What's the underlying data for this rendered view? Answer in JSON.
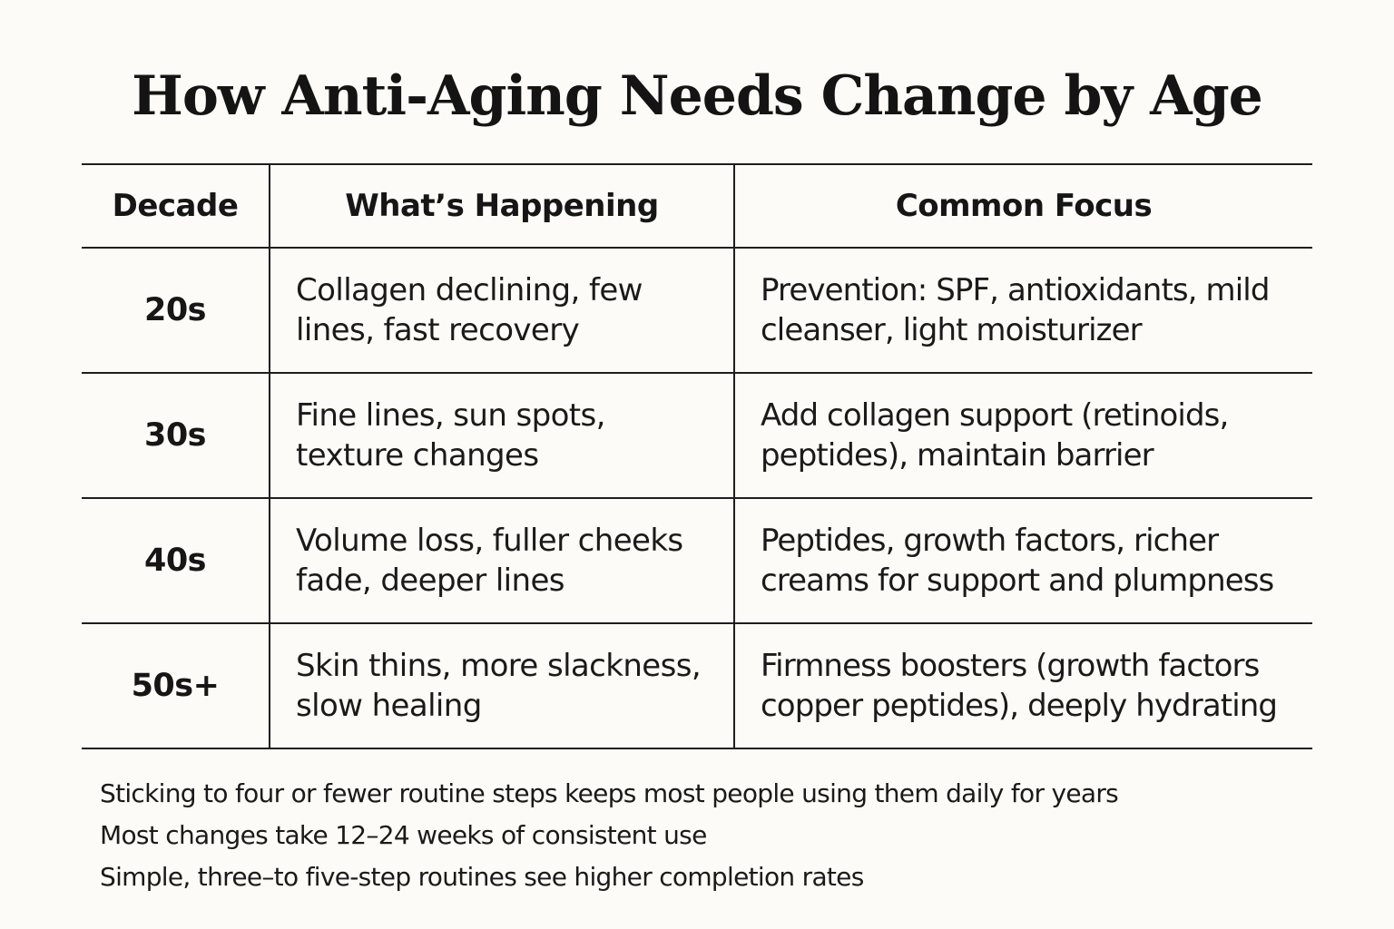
{
  "title": "How Anti-Aging Needs Change by Age",
  "table": {
    "headers": [
      "Decade",
      "What’s Happening",
      "Common Focus"
    ],
    "rows": [
      {
        "decade": "20s",
        "happening": "Collagen declining, few lines, fast recovery",
        "focus": "Prevention: SPF, antioxidants, mild cleanser, light moisturizer"
      },
      {
        "decade": "30s",
        "happening": "Fine lines, sun spots, texture changes",
        "focus": "Add collagen support (retinoids, peptides), maintain barrier"
      },
      {
        "decade": "40s",
        "happening": "Volume loss, fuller cheeks fade, deeper lines",
        "focus": "Peptides, growth factors, richer creams for support and plumpness"
      },
      {
        "decade": "50s+",
        "happening": "Skin thins, more slackness, slow healing",
        "focus": "Firmness boosters (growth factors copper peptides), deeply hydrating"
      }
    ]
  },
  "notes": [
    "Sticking to four or fewer routine steps keeps most people using them daily for years",
    "Most changes take 12–24 weeks of consistent use",
    "Simple, three–to five-step routines see higher completion rates"
  ]
}
